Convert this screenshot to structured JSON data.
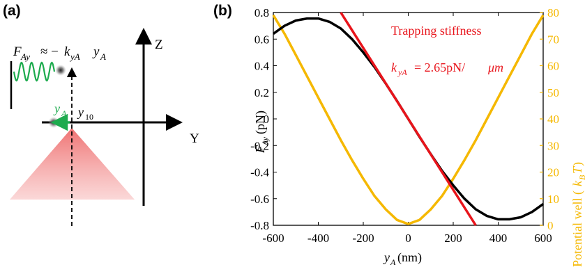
{
  "panel_a": {
    "label": "(a)",
    "formula": "F_Ay ≈ −k_yA y_A",
    "axis_z": "Z",
    "axis_y": "Y",
    "label_ya": "y_A",
    "label_y10": "y_10"
  },
  "panel_b": {
    "label": "(b)",
    "annotation_title": "Trapping stiffness",
    "annotation_value": "= 2.65pN/",
    "annotation_unit": "μm"
  },
  "colors": {
    "force": "#000000",
    "stiffness": "#E8141B",
    "potential": "#F5B800",
    "oscillation": "#1DAB4E",
    "beam": "#F08080"
  },
  "chart_data": {
    "type": "line",
    "xlabel": "y_A(nm)",
    "ylabel_left": "F_Ay(pN)",
    "ylabel_right": "Potential well (k_BT)",
    "xlim": [
      -600,
      600
    ],
    "ylim_left": [
      -0.8,
      0.8
    ],
    "ylim_right": [
      0,
      80
    ],
    "x_ticks": [
      "-600",
      "-400",
      "-200",
      "0",
      "200",
      "400",
      "600"
    ],
    "y_ticks_left": [
      "0.8",
      "0.6",
      "0.4",
      "0.2",
      "0",
      "-0.2",
      "-0.4",
      "-0.6",
      "-0.8"
    ],
    "y_ticks_right": [
      "80",
      "70",
      "60",
      "50",
      "40",
      "30",
      "20",
      "10",
      "0"
    ],
    "series": [
      {
        "axis": "left",
        "x": [
          -600,
          -550,
          -500,
          -450,
          -400,
          -350,
          -300,
          -250,
          -200,
          -150,
          -100,
          -50,
          0,
          50,
          100,
          150,
          200,
          250,
          300,
          350,
          400,
          450,
          500,
          550,
          600
        ],
        "y": [
          0.64,
          0.7,
          0.74,
          0.755,
          0.755,
          0.73,
          0.68,
          0.6,
          0.5,
          0.39,
          0.265,
          0.135,
          0.0,
          -0.135,
          -0.265,
          -0.39,
          -0.5,
          -0.6,
          -0.68,
          -0.73,
          -0.755,
          -0.755,
          -0.74,
          -0.7,
          -0.64
        ]
      },
      {
        "name": "Trapping stiffness",
        "axis": "left",
        "x": [
          -300,
          300
        ],
        "y": [
          0.8,
          -0.8
        ]
      },
      {
        "axis": "right",
        "x": [
          -600,
          -550,
          -500,
          -450,
          -400,
          -350,
          -300,
          -250,
          -200,
          -150,
          -100,
          -50,
          0,
          50,
          100,
          150,
          200,
          250,
          300,
          350,
          400,
          450,
          500,
          550,
          600
        ],
        "y": [
          79,
          72,
          64,
          56,
          48,
          40,
          32,
          24.5,
          17.5,
          11,
          6,
          2,
          0.5,
          2,
          6,
          11,
          17.5,
          24.5,
          32,
          40,
          48,
          56,
          64,
          72,
          79
        ]
      }
    ]
  }
}
